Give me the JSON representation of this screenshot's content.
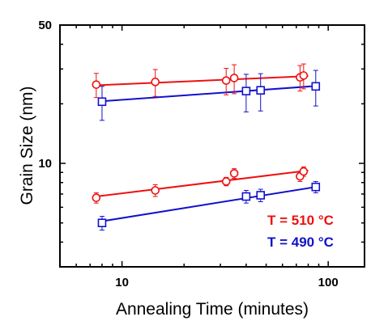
{
  "chart_data": {
    "type": "scatter",
    "xlabel": "Annealing Time (minutes)",
    "ylabel": "Grain Size (nm)",
    "x_scale": "log",
    "y_scale": "log",
    "xlim": [
      5,
      150
    ],
    "ylim": [
      3,
      50
    ],
    "x_ticks": [
      10,
      100
    ],
    "x_tick_labels": [
      "10",
      "100"
    ],
    "y_ticks": [
      10,
      50
    ],
    "y_tick_labels": [
      "10",
      "50"
    ],
    "legend": [
      {
        "text": "T = 510 °C",
        "color": "#ee1111"
      },
      {
        "text": "T = 490 °C",
        "color": "#1111cc"
      }
    ],
    "series": [
      {
        "color": "#ee1111",
        "marker": "circle",
        "x": [
          7.5,
          14.5,
          32,
          35,
          73,
          76
        ],
        "y": [
          25.0,
          25.8,
          26.2,
          27.0,
          27.2,
          27.8
        ],
        "yerr": [
          3.5,
          4.0,
          4.0,
          4.5,
          4.0,
          4.0
        ],
        "fit": {
          "x": [
            7.5,
            80
          ],
          "y": [
            24.8,
            27.6
          ]
        }
      },
      {
        "color": "#1111cc",
        "marker": "square",
        "x": [
          8,
          40,
          47,
          87
        ],
        "y": [
          20.5,
          23.2,
          23.4,
          24.5
        ],
        "yerr": [
          4.0,
          5.0,
          5.0,
          5.0
        ],
        "fit": {
          "x": [
            8,
            87
          ],
          "y": [
            20.6,
            24.6
          ]
        }
      },
      {
        "color": "#ee1111",
        "marker": "circle",
        "x": [
          7.5,
          14.5,
          32,
          35,
          73,
          76
        ],
        "y": [
          6.7,
          7.3,
          8.1,
          8.9,
          8.6,
          9.1
        ],
        "yerr": [
          0.4,
          0.5,
          0.4,
          0.5,
          0.5,
          0.5
        ],
        "fit": {
          "x": [
            7.5,
            80
          ],
          "y": [
            6.8,
            9.2
          ]
        }
      },
      {
        "color": "#1111cc",
        "marker": "square",
        "x": [
          8,
          40,
          47,
          87
        ],
        "y": [
          5.0,
          6.8,
          6.9,
          7.6
        ],
        "yerr": [
          0.4,
          0.5,
          0.5,
          0.5
        ],
        "fit": {
          "x": [
            8,
            87
          ],
          "y": [
            5.1,
            7.6
          ]
        }
      }
    ]
  }
}
